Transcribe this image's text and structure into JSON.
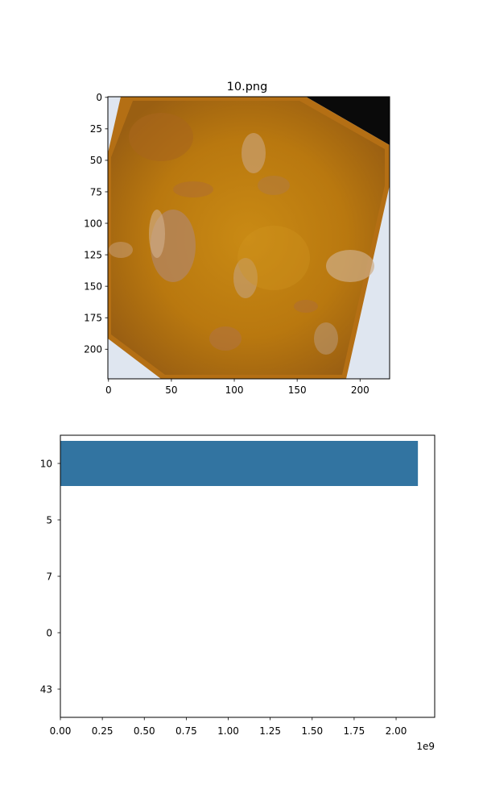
{
  "chart_data": [
    {
      "type": "image",
      "title": "10.png",
      "xticks": [
        0,
        50,
        100,
        150,
        200
      ],
      "yticks": [
        0,
        25,
        50,
        75,
        100,
        125,
        150,
        175,
        200
      ],
      "xlim": [
        -0.5,
        223.5
      ],
      "ylim": [
        223.5,
        -0.5
      ],
      "image_description": "photo of an orange-brown curry/stew in a square white dish, rotated; chunks of meat; black corner top-right"
    },
    {
      "type": "bar",
      "orientation": "horizontal",
      "categories": [
        "10",
        "5",
        "7",
        "0",
        "43"
      ],
      "values": [
        2130000000,
        0,
        0,
        0,
        0
      ],
      "xticks": [
        0,
        0.25,
        0.5,
        0.75,
        1.0,
        1.25,
        1.5,
        1.75,
        2.0
      ],
      "xtick_labels": [
        "0.00",
        "0.25",
        "0.50",
        "0.75",
        "1.00",
        "1.25",
        "1.50",
        "1.75",
        "2.00"
      ],
      "offset_text": "1e9",
      "xlim": [
        0,
        2230000000
      ],
      "bar_color": "#3274a1",
      "grid": false
    }
  ]
}
